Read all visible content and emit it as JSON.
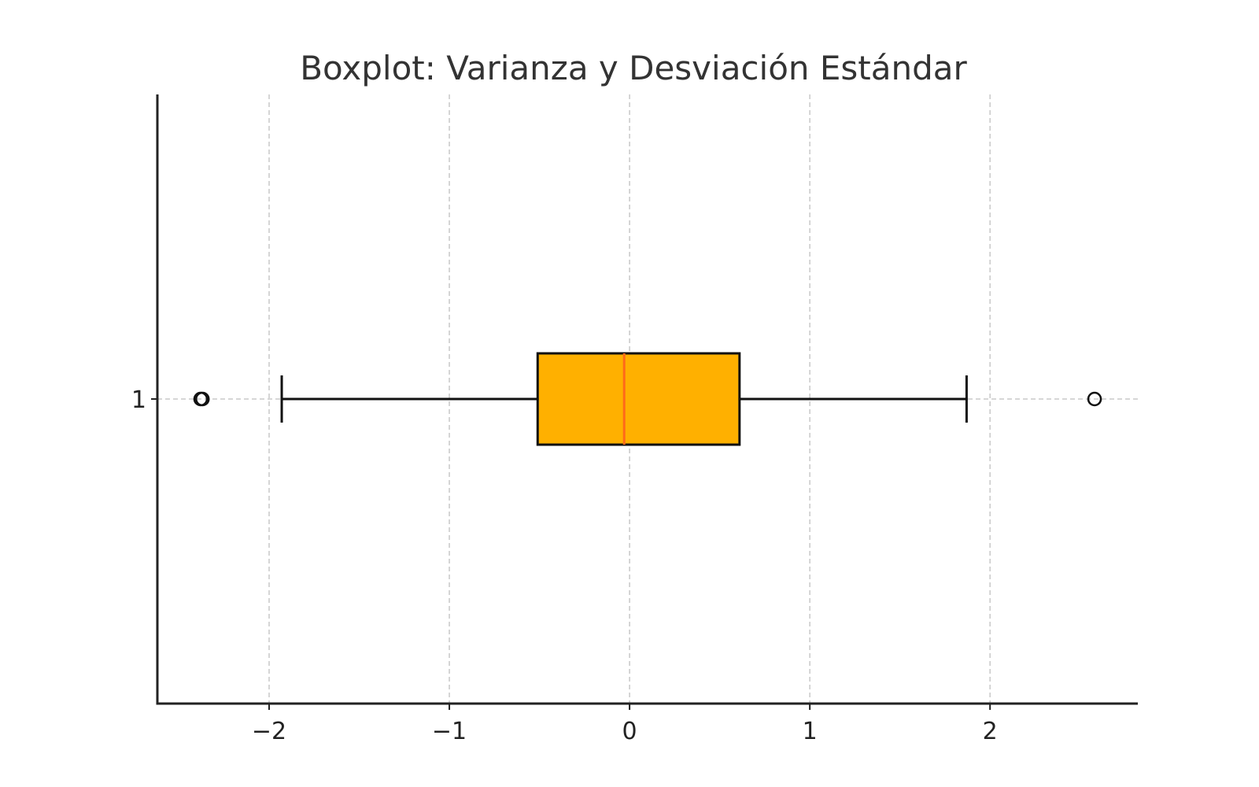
{
  "chart_data": {
    "type": "boxplot",
    "orientation": "horizontal",
    "title": "Boxplot: Varianza y Desviación Estándar",
    "xlabel": "",
    "ylabel": "",
    "xlim": [
      -2.62,
      2.82
    ],
    "xticks": [
      -2,
      -1,
      0,
      1,
      2
    ],
    "xtick_labels": [
      "−2",
      "−1",
      "0",
      "1",
      "2"
    ],
    "yticks": [
      1
    ],
    "ytick_labels": [
      "1"
    ],
    "grid": "dashed",
    "boxes": [
      {
        "position": 1,
        "whisker_low": -1.93,
        "q1": -0.51,
        "median": -0.03,
        "q3": 0.61,
        "whisker_high": 1.87,
        "outliers": [
          -2.38,
          -2.37,
          2.58
        ]
      }
    ],
    "colors": {
      "box_fill": "#ffb000",
      "median_line": "#ff6a1a",
      "outline": "#111111",
      "grid": "#c8c8c8",
      "axis": "#222222"
    }
  }
}
